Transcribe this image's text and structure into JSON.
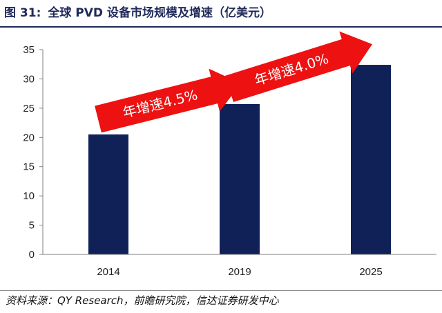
{
  "figure": {
    "label": "图 31:",
    "title": "全球 PVD 设备市场规模及增速（亿美元）",
    "source": "资料来源：QY Research，前瞻研究院，信达证券研发中心"
  },
  "chart_data": {
    "type": "bar",
    "categories": [
      "2014",
      "2019",
      "2025"
    ],
    "values": [
      20.5,
      25.7,
      32.4
    ],
    "ylim": [
      0,
      35
    ],
    "yticks": [
      0,
      5,
      10,
      15,
      20,
      25,
      30,
      35
    ],
    "xlabel": "",
    "ylabel": "",
    "grid": false,
    "legend": "none",
    "bar_color": "#0f2157",
    "arrow_color": "#ee1111",
    "annotations": [
      {
        "from": "2014",
        "to": "2019",
        "text": "年增速4.5%"
      },
      {
        "from": "2019",
        "to": "2025",
        "text": "年增速4.0%"
      }
    ]
  }
}
